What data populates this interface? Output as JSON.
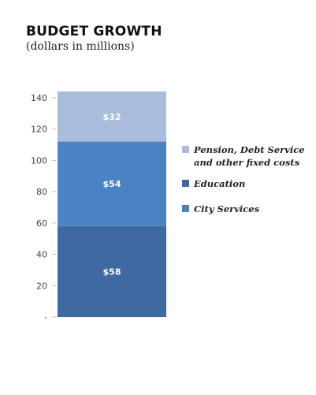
{
  "header": {
    "title": "BUDGET GROWTH",
    "subtitle": "(dollars in millions)"
  },
  "chart_data": {
    "type": "bar",
    "stacked": true,
    "categories": [
      ""
    ],
    "series": [
      {
        "name": "Education",
        "values": [
          58
        ],
        "label": "$58",
        "color": "#3e6aa1"
      },
      {
        "name": "City Services",
        "values": [
          54
        ],
        "label": "$54",
        "color": "#4a83c3"
      },
      {
        "name": "Pension, Debt Service and other fixed costs",
        "values": [
          32
        ],
        "label": "$32",
        "color": "#a9bcdc"
      }
    ],
    "y_ticks": [
      {
        "value": 0,
        "label": "-"
      },
      {
        "value": 20,
        "label": "20"
      },
      {
        "value": 40,
        "label": "40"
      },
      {
        "value": 60,
        "label": "60"
      },
      {
        "value": 80,
        "label": "80"
      },
      {
        "value": 100,
        "label": "100"
      },
      {
        "value": 120,
        "label": "120"
      },
      {
        "value": 140,
        "label": "140"
      }
    ],
    "ylim": [
      0,
      144
    ],
    "grid": false,
    "legend_position": "right",
    "legend": [
      {
        "lines": [
          "Pension, Debt Service",
          "and other fixed costs"
        ],
        "color": "#a9bcdc"
      },
      {
        "lines": [
          "Education"
        ],
        "color": "#3e6aa1"
      },
      {
        "lines": [
          "City Services"
        ],
        "color": "#4a83c3"
      }
    ]
  }
}
